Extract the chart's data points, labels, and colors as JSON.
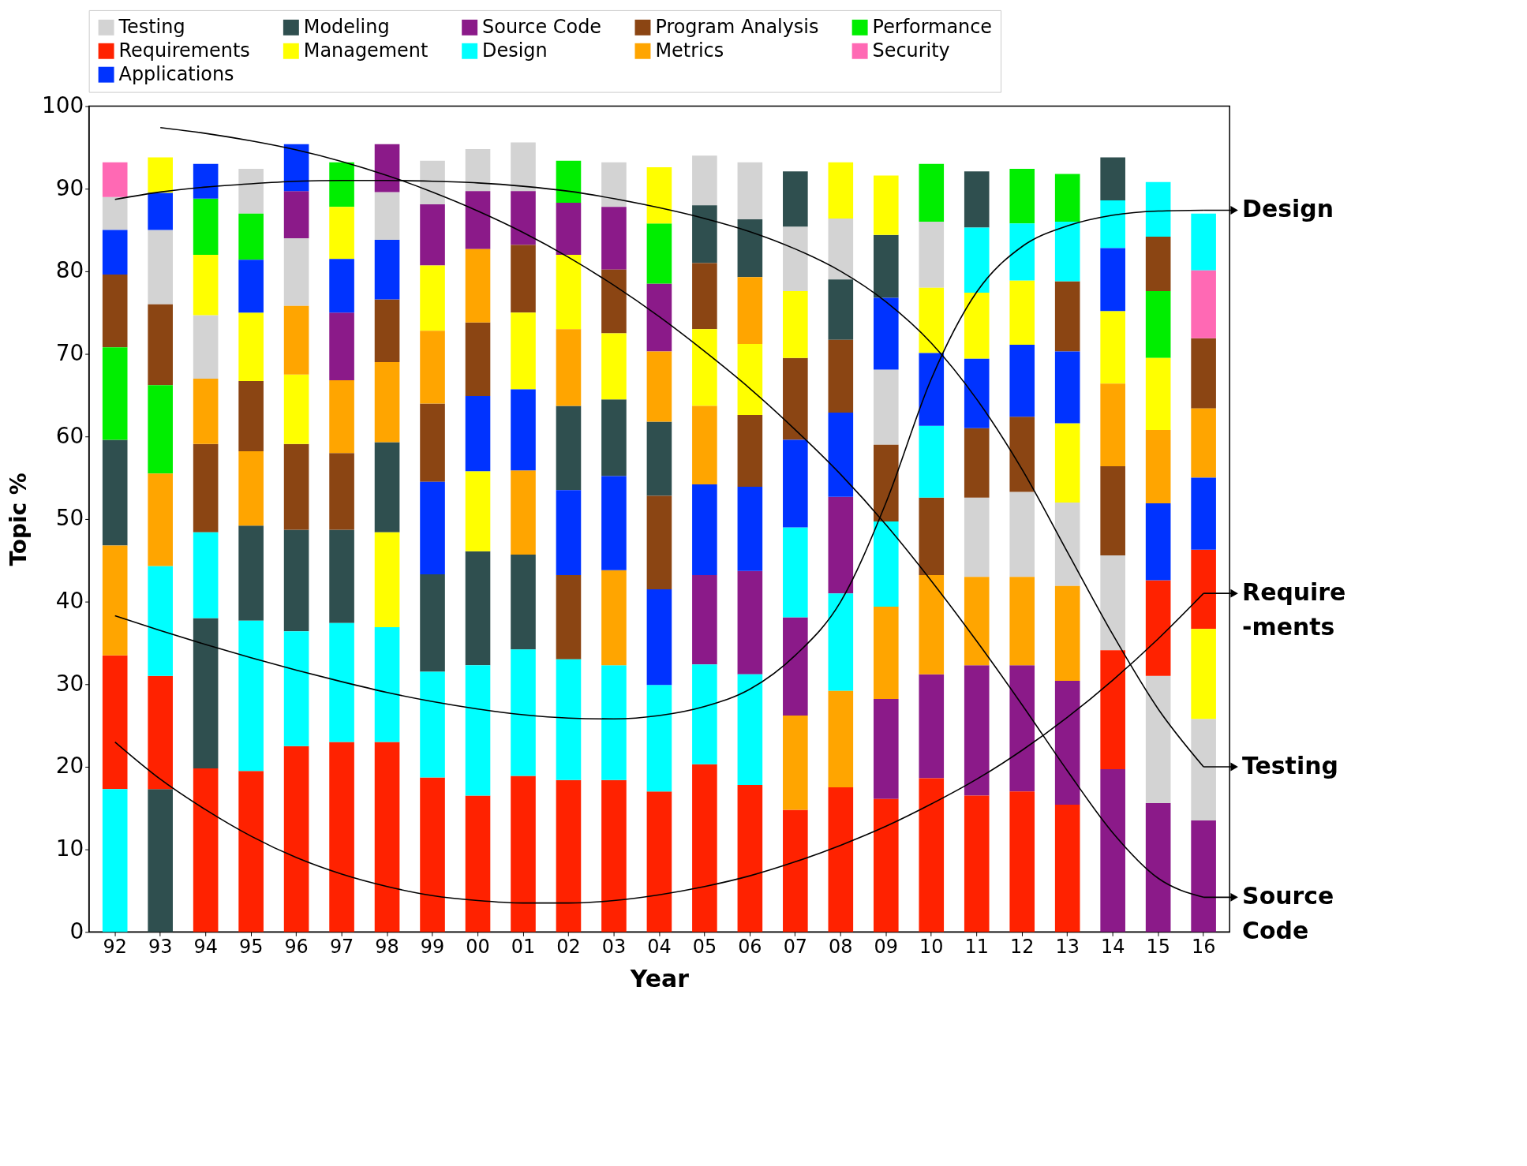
{
  "chart_data": {
    "type": "bar",
    "xlabel": "Year",
    "ylabel": "Topic %",
    "legend": "top",
    "grid": false,
    "ylim": [
      0,
      100
    ],
    "yticks": [
      0,
      10,
      20,
      30,
      40,
      50,
      60,
      70,
      80,
      90,
      100
    ],
    "categories": [
      "92",
      "93",
      "94",
      "95",
      "96",
      "97",
      "98",
      "99",
      "00",
      "01",
      "02",
      "03",
      "04",
      "05",
      "06",
      "07",
      "08",
      "09",
      "10",
      "11",
      "12",
      "13",
      "14",
      "15",
      "16"
    ],
    "series": [
      {
        "name": "Testing",
        "color": "#d3d3d3",
        "base": [
          85,
          76,
          67,
          87,
          75.8,
          null,
          83.8,
          88.1,
          89.7,
          89.7,
          null,
          87.8,
          null,
          88,
          86.3,
          77.6,
          79,
          59,
          78,
          43,
          43,
          41.9,
          34.1,
          15.6,
          13.5
        ],
        "values": [
          4,
          9,
          7.7,
          5.4,
          8.2,
          null,
          5.8,
          5.3,
          5.1,
          5.9,
          null,
          5.4,
          null,
          6,
          6.9,
          7.8,
          7.4,
          9.1,
          8,
          9.6,
          10.3,
          10.1,
          11.5,
          15.4,
          12.3
        ]
      },
      {
        "name": "Modeling",
        "color": "#2f4f4f",
        "base": [
          46.8,
          0,
          19.8,
          37.7,
          36.4,
          37.4,
          48.4,
          31.5,
          32.3,
          34.2,
          53.5,
          55.2,
          52.8,
          81,
          79.3,
          85.4,
          71.7,
          76.8,
          null,
          85.3,
          null,
          null,
          88.6,
          null,
          null
        ],
        "values": [
          12.8,
          17.3,
          18.2,
          11.5,
          12.3,
          11.3,
          10.9,
          11.8,
          13.8,
          11.5,
          10.2,
          9.3,
          9,
          7,
          7,
          6.7,
          7.3,
          7.6,
          null,
          6.8,
          null,
          null,
          5.2,
          null,
          null
        ]
      },
      {
        "name": "Source Code",
        "color": "#8b1a89",
        "base": [
          null,
          null,
          null,
          null,
          84,
          66.8,
          89.6,
          80.7,
          82.7,
          83.2,
          82,
          80.2,
          70.3,
          32.4,
          31.2,
          26.2,
          41,
          16.1,
          18.6,
          16.5,
          17,
          15.4,
          0,
          0,
          0
        ],
        "values": [
          null,
          null,
          null,
          null,
          5.7,
          8.2,
          5.8,
          7.4,
          7,
          6.5,
          6.3,
          7.6,
          8.2,
          10.8,
          12.5,
          11.9,
          11.7,
          12.1,
          12.6,
          15.8,
          15.3,
          15,
          19.7,
          15.6,
          13.5
        ]
      },
      {
        "name": "Program Analysis",
        "color": "#8b4513",
        "base": [
          70.8,
          66.2,
          48.4,
          58.2,
          48.7,
          48.7,
          69,
          54.5,
          64.9,
          75,
          33,
          72.5,
          41.5,
          73,
          53.9,
          59.6,
          62.9,
          49.7,
          43.2,
          52.6,
          53.3,
          70.3,
          45.6,
          77.6,
          63.4
        ],
        "values": [
          8.8,
          9.8,
          10.7,
          8.5,
          10.4,
          9.3,
          7.6,
          9.5,
          8.9,
          8.2,
          10.2,
          7.7,
          11.3,
          8,
          8.7,
          9.9,
          8.8,
          9.3,
          9.4,
          8.4,
          9.1,
          8.5,
          10.8,
          6.6,
          8.5
        ]
      },
      {
        "name": "Performance",
        "color": "#00ee00",
        "base": [
          59.6,
          55.5,
          82,
          81.4,
          null,
          87.8,
          null,
          null,
          null,
          null,
          88.3,
          null,
          78.5,
          null,
          null,
          null,
          null,
          null,
          86,
          null,
          85.8,
          86,
          null,
          69.5,
          null
        ],
        "values": [
          11.2,
          10.7,
          6.8,
          5.6,
          null,
          5.4,
          null,
          null,
          null,
          null,
          5.1,
          null,
          7.3,
          null,
          null,
          null,
          null,
          null,
          7,
          null,
          6.6,
          5.8,
          null,
          8.1,
          null
        ]
      },
      {
        "name": "Requirements",
        "color": "#ff2200",
        "base": [
          17.3,
          17.3,
          0,
          0,
          0,
          0,
          0,
          0,
          0,
          0,
          0,
          0,
          0,
          0,
          0,
          0,
          0,
          0,
          0,
          0,
          0,
          0,
          19.7,
          31,
          36.7
        ],
        "values": [
          16.2,
          13.7,
          19.8,
          19.5,
          22.5,
          23,
          23,
          18.7,
          16.5,
          18.9,
          18.4,
          18.4,
          17,
          20.3,
          17.8,
          14.8,
          17.5,
          16.1,
          18.6,
          16.5,
          17,
          15.4,
          14.4,
          11.6,
          9.6
        ]
      },
      {
        "name": "Management",
        "color": "#ffff00",
        "base": [
          null,
          89.5,
          74.7,
          66.7,
          59.1,
          81.5,
          36.9,
          72.8,
          46.1,
          65.7,
          73,
          64.5,
          85.8,
          63.7,
          62.6,
          69.5,
          86.4,
          84.4,
          70.1,
          69.4,
          71.1,
          52,
          66.4,
          60.8,
          25.8
        ],
        "values": [
          null,
          4.3,
          7.3,
          8.3,
          8.4,
          6.3,
          11.5,
          7.9,
          9.7,
          9.3,
          9,
          8,
          6.8,
          9.3,
          8.6,
          8.1,
          6.8,
          7.2,
          7.9,
          8,
          7.8,
          9.6,
          8.8,
          8.7,
          10.9
        ]
      },
      {
        "name": "Design",
        "color": "#00ffff",
        "base": [
          0,
          31,
          38,
          19.5,
          22.5,
          23,
          23,
          18.7,
          16.5,
          18.9,
          18.4,
          18.4,
          17,
          20.3,
          17.8,
          38.1,
          29.2,
          39.4,
          52.6,
          77.4,
          78.9,
          78.8,
          82.8,
          84.2,
          80.1
        ],
        "values": [
          17.3,
          13.3,
          10.4,
          18.2,
          13.9,
          14.4,
          13.9,
          12.8,
          15.8,
          15.3,
          14.6,
          13.9,
          12.9,
          12.1,
          13.4,
          10.9,
          11.8,
          10.3,
          8.7,
          7.9,
          6.9,
          7.2,
          5.8,
          6.6,
          6.9
        ]
      },
      {
        "name": "Metrics",
        "color": "#ffa500",
        "base": [
          33.5,
          44.3,
          59.1,
          49.2,
          67.5,
          58,
          59.3,
          64,
          73.8,
          45.7,
          63.7,
          32.3,
          61.8,
          54.2,
          71.2,
          14.8,
          17.5,
          28.2,
          31.2,
          32.3,
          32.3,
          30.4,
          56.4,
          51.9,
          55
        ],
        "values": [
          13.3,
          11.2,
          7.9,
          9,
          8.3,
          8.8,
          9.7,
          8.8,
          8.9,
          10.2,
          9.3,
          11.5,
          8.5,
          9.5,
          8.1,
          11.4,
          11.7,
          11.2,
          12,
          10.7,
          10.7,
          11.5,
          10,
          8.9,
          8.4
        ]
      },
      {
        "name": "Security",
        "color": "#ff69b4",
        "base": [
          89,
          null,
          null,
          null,
          null,
          null,
          null,
          null,
          null,
          null,
          null,
          null,
          null,
          null,
          null,
          null,
          null,
          null,
          null,
          null,
          null,
          null,
          null,
          null,
          71.9
        ],
        "values": [
          4.2,
          null,
          null,
          null,
          null,
          null,
          null,
          null,
          null,
          null,
          null,
          null,
          null,
          null,
          null,
          null,
          null,
          null,
          null,
          null,
          null,
          null,
          null,
          null,
          8.2
        ]
      },
      {
        "name": "Applications",
        "color": "#0033ff",
        "base": [
          79.6,
          85,
          88.8,
          75,
          89.7,
          75,
          76.6,
          43.3,
          55.8,
          55.9,
          43.2,
          43.8,
          29.9,
          43.2,
          43.7,
          49,
          52.7,
          68.1,
          61.3,
          61,
          62.4,
          61.6,
          75.2,
          42.6,
          46.3
        ],
        "values": [
          5.4,
          4.5,
          4.2,
          6.4,
          5.7,
          6.5,
          7.2,
          11.2,
          9.1,
          9.8,
          10.3,
          11.4,
          11.6,
          11,
          10.2,
          10.6,
          10.2,
          8.7,
          8.8,
          8.4,
          8.7,
          8.7,
          7.6,
          9.3,
          8.7
        ]
      },
      {
        "name": "Design",
        "type": "line",
        "color": "#000000",
        "values": [
          38.3,
          36.5,
          34.8,
          33.2,
          31.7,
          30.3,
          29,
          27.9,
          27,
          26.3,
          25.9,
          25.8,
          26.2,
          27.3,
          29.4,
          33.5,
          40,
          52,
          67,
          77.5,
          83,
          85.5,
          86.8,
          87.3,
          87.4
        ]
      },
      {
        "name": "Require\n-ments",
        "type": "line",
        "color": "#000000",
        "values": [
          23,
          18.5,
          14.8,
          11.6,
          9,
          7,
          5.5,
          4.4,
          3.8,
          3.5,
          3.5,
          3.8,
          4.5,
          5.5,
          6.8,
          8.5,
          10.5,
          12.8,
          15.5,
          18.5,
          22,
          26,
          30.5,
          35.5,
          41
        ]
      },
      {
        "name": "Testing",
        "type": "line",
        "color": "#000000",
        "values": [
          88.7,
          89.6,
          90.2,
          90.6,
          90.9,
          91,
          91,
          90.9,
          90.7,
          90.3,
          89.7,
          88.8,
          87.7,
          86.4,
          84.8,
          82.7,
          80,
          76.3,
          71.3,
          64.5,
          56,
          46,
          36,
          27,
          20
        ]
      },
      {
        "name": "Source\nCode",
        "type": "line",
        "color": "#000000",
        "values": [
          null,
          97.4,
          96.7,
          95.8,
          94.7,
          93.3,
          91.6,
          89.6,
          87.3,
          84.7,
          81.7,
          78.3,
          74.5,
          70.3,
          65.8,
          60.8,
          55.4,
          49.3,
          42.5,
          35.2,
          27.5,
          19.5,
          12,
          6.5,
          4.2
        ]
      }
    ]
  }
}
